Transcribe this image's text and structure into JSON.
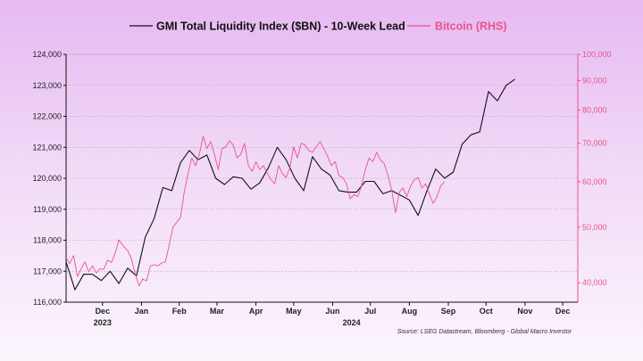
{
  "chart_data": {
    "type": "line",
    "legend": {
      "position": "top-center",
      "entries": [
        {
          "name": "GMI Total Liquidity Index ($BN) - 10-Week Lead",
          "color": "#111111"
        },
        {
          "name": "Bitcoin (RHS)",
          "color": "#e8548a"
        }
      ]
    },
    "y_left": {
      "lim": [
        116000,
        124000
      ],
      "ticks": [
        116000,
        117000,
        118000,
        119000,
        120000,
        121000,
        122000,
        123000,
        124000
      ],
      "tick_labels": [
        "116,000",
        "117,000",
        "118,000",
        "119,000",
        "120,000",
        "121,000",
        "122,000",
        "123,000",
        "124,000"
      ]
    },
    "y_right": {
      "scale": "log",
      "lim": [
        37000,
        100000
      ],
      "ticks": [
        40000,
        50000,
        60000,
        70000,
        80000,
        90000,
        100000
      ],
      "tick_labels": [
        "40,000",
        "50,000",
        "60,000",
        "70,000",
        "80,000",
        "90,000",
        "100,000"
      ]
    },
    "x_axis": {
      "start": "2023-11-17",
      "end": "2024-12-28",
      "month_labels": [
        {
          "label": "Dec",
          "date": "2023-12-16"
        },
        {
          "label": "Jan",
          "date": "2024-01-16"
        },
        {
          "label": "Feb",
          "date": "2024-02-15"
        },
        {
          "label": "Mar",
          "date": "2024-03-16"
        },
        {
          "label": "Apr",
          "date": "2024-04-16"
        },
        {
          "label": "May",
          "date": "2024-05-16"
        },
        {
          "label": "Jun",
          "date": "2024-06-16"
        },
        {
          "label": "Jul",
          "date": "2024-07-16"
        },
        {
          "label": "Aug",
          "date": "2024-08-16"
        },
        {
          "label": "Sep",
          "date": "2024-09-16"
        },
        {
          "label": "Oct",
          "date": "2024-10-16"
        },
        {
          "label": "Nov",
          "date": "2024-11-16"
        },
        {
          "label": "Dec",
          "date": "2024-12-16"
        }
      ],
      "year_labels": [
        {
          "label": "2023",
          "date": "2023-12-16"
        },
        {
          "label": "2024",
          "date": "2024-07-01"
        }
      ]
    },
    "grid": "horizontal dotted",
    "series": [
      {
        "name": "GMI Total Liquidity Index ($BN) - 10-Week Lead",
        "axis": "left",
        "color": "#111111",
        "points": [
          [
            "2023-11-17",
            117300
          ],
          [
            "2023-11-24",
            116400
          ],
          [
            "2023-12-01",
            116900
          ],
          [
            "2023-12-08",
            116900
          ],
          [
            "2023-12-15",
            116700
          ],
          [
            "2023-12-22",
            117000
          ],
          [
            "2023-12-29",
            116600
          ],
          [
            "2024-01-05",
            117100
          ],
          [
            "2024-01-12",
            116850
          ],
          [
            "2024-01-19",
            118100
          ],
          [
            "2024-01-26",
            118700
          ],
          [
            "2024-02-02",
            119700
          ],
          [
            "2024-02-09",
            119600
          ],
          [
            "2024-02-16",
            120500
          ],
          [
            "2024-02-23",
            120900
          ],
          [
            "2024-03-01",
            120600
          ],
          [
            "2024-03-08",
            120750
          ],
          [
            "2024-03-15",
            120000
          ],
          [
            "2024-03-22",
            119800
          ],
          [
            "2024-03-29",
            120050
          ],
          [
            "2024-04-05",
            120000
          ],
          [
            "2024-04-12",
            119650
          ],
          [
            "2024-04-19",
            119850
          ],
          [
            "2024-04-26",
            120350
          ],
          [
            "2024-05-03",
            121000
          ],
          [
            "2024-05-10",
            120600
          ],
          [
            "2024-05-17",
            120000
          ],
          [
            "2024-05-24",
            119600
          ],
          [
            "2024-05-31",
            120700
          ],
          [
            "2024-06-07",
            120300
          ],
          [
            "2024-06-14",
            120100
          ],
          [
            "2024-06-21",
            119600
          ],
          [
            "2024-06-28",
            119550
          ],
          [
            "2024-07-05",
            119550
          ],
          [
            "2024-07-12",
            119900
          ],
          [
            "2024-07-19",
            119900
          ],
          [
            "2024-07-26",
            119500
          ],
          [
            "2024-08-02",
            119600
          ],
          [
            "2024-08-09",
            119450
          ],
          [
            "2024-08-16",
            119300
          ],
          [
            "2024-08-23",
            118800
          ],
          [
            "2024-08-30",
            119600
          ],
          [
            "2024-09-06",
            120300
          ],
          [
            "2024-09-13",
            120000
          ],
          [
            "2024-09-20",
            120200
          ],
          [
            "2024-09-27",
            121100
          ],
          [
            "2024-10-04",
            121400
          ],
          [
            "2024-10-11",
            121500
          ],
          [
            "2024-10-18",
            122800
          ],
          [
            "2024-10-25",
            122500
          ],
          [
            "2024-11-01",
            123000
          ],
          [
            "2024-11-08",
            123200
          ]
        ]
      },
      {
        "name": "Bitcoin (RHS)",
        "axis": "right",
        "color": "#e8548a",
        "points": [
          [
            "2023-11-17",
            44200
          ],
          [
            "2023-11-20",
            43200
          ],
          [
            "2023-11-23",
            44600
          ],
          [
            "2023-11-26",
            41000
          ],
          [
            "2023-11-29",
            42300
          ],
          [
            "2023-12-02",
            43500
          ],
          [
            "2023-12-05",
            41800
          ],
          [
            "2023-12-08",
            42800
          ],
          [
            "2023-12-11",
            41600
          ],
          [
            "2023-12-14",
            42300
          ],
          [
            "2023-12-17",
            42200
          ],
          [
            "2023-12-20",
            43800
          ],
          [
            "2023-12-23",
            43400
          ],
          [
            "2023-12-26",
            45000
          ],
          [
            "2023-12-29",
            47500
          ],
          [
            "2024-01-02",
            46200
          ],
          [
            "2024-01-05",
            45500
          ],
          [
            "2024-01-08",
            44000
          ],
          [
            "2024-01-11",
            41500
          ],
          [
            "2024-01-14",
            39500
          ],
          [
            "2024-01-17",
            40600
          ],
          [
            "2024-01-20",
            40300
          ],
          [
            "2024-01-23",
            42800
          ],
          [
            "2024-01-26",
            43000
          ],
          [
            "2024-01-29",
            42800
          ],
          [
            "2024-02-01",
            43300
          ],
          [
            "2024-02-04",
            43500
          ],
          [
            "2024-02-07",
            46500
          ],
          [
            "2024-02-10",
            50000
          ],
          [
            "2024-02-13",
            51000
          ],
          [
            "2024-02-16",
            52000
          ],
          [
            "2024-02-19",
            57500
          ],
          [
            "2024-02-22",
            62000
          ],
          [
            "2024-02-25",
            66000
          ],
          [
            "2024-02-28",
            64000
          ],
          [
            "2024-03-02",
            67000
          ],
          [
            "2024-03-05",
            72000
          ],
          [
            "2024-03-08",
            68500
          ],
          [
            "2024-03-11",
            70500
          ],
          [
            "2024-03-14",
            67000
          ],
          [
            "2024-03-17",
            63000
          ],
          [
            "2024-03-20",
            68500
          ],
          [
            "2024-03-23",
            69000
          ],
          [
            "2024-03-26",
            70700
          ],
          [
            "2024-03-29",
            69500
          ],
          [
            "2024-04-01",
            66000
          ],
          [
            "2024-04-04",
            67000
          ],
          [
            "2024-04-07",
            70000
          ],
          [
            "2024-04-10",
            64000
          ],
          [
            "2024-04-13",
            62500
          ],
          [
            "2024-04-16",
            65000
          ],
          [
            "2024-04-19",
            63000
          ],
          [
            "2024-04-22",
            64000
          ],
          [
            "2024-04-25",
            62000
          ],
          [
            "2024-04-28",
            60500
          ],
          [
            "2024-05-01",
            59500
          ],
          [
            "2024-05-04",
            64000
          ],
          [
            "2024-05-07",
            62000
          ],
          [
            "2024-05-10",
            61000
          ],
          [
            "2024-05-13",
            63500
          ],
          [
            "2024-05-16",
            69000
          ],
          [
            "2024-05-19",
            66000
          ],
          [
            "2024-05-22",
            70000
          ],
          [
            "2024-05-25",
            69500
          ],
          [
            "2024-05-28",
            68000
          ],
          [
            "2024-05-31",
            67500
          ],
          [
            "2024-06-03",
            69000
          ],
          [
            "2024-06-06",
            70500
          ],
          [
            "2024-06-09",
            68500
          ],
          [
            "2024-06-12",
            66500
          ],
          [
            "2024-06-15",
            64000
          ],
          [
            "2024-06-18",
            65000
          ],
          [
            "2024-06-21",
            61500
          ],
          [
            "2024-06-24",
            61000
          ],
          [
            "2024-06-27",
            59500
          ],
          [
            "2024-06-30",
            56000
          ],
          [
            "2024-07-03",
            57000
          ],
          [
            "2024-07-06",
            56500
          ],
          [
            "2024-07-09",
            59000
          ],
          [
            "2024-07-12",
            63000
          ],
          [
            "2024-07-15",
            66000
          ],
          [
            "2024-07-18",
            65000
          ],
          [
            "2024-07-21",
            67500
          ],
          [
            "2024-07-24",
            65500
          ],
          [
            "2024-07-27",
            64500
          ],
          [
            "2024-07-30",
            61500
          ],
          [
            "2024-08-02",
            58000
          ],
          [
            "2024-08-05",
            53000
          ],
          [
            "2024-08-08",
            57500
          ],
          [
            "2024-08-11",
            58500
          ],
          [
            "2024-08-14",
            56500
          ],
          [
            "2024-08-17",
            59000
          ],
          [
            "2024-08-20",
            60500
          ],
          [
            "2024-08-23",
            61000
          ],
          [
            "2024-08-26",
            58500
          ],
          [
            "2024-08-29",
            59500
          ],
          [
            "2024-09-01",
            57000
          ],
          [
            "2024-09-04",
            55000
          ],
          [
            "2024-09-07",
            56500
          ],
          [
            "2024-09-10",
            59000
          ],
          [
            "2024-09-13",
            60000
          ]
        ]
      }
    ],
    "source_note": "Source: LSEG Datastream, Bloomberg - Global Macro Investor"
  }
}
